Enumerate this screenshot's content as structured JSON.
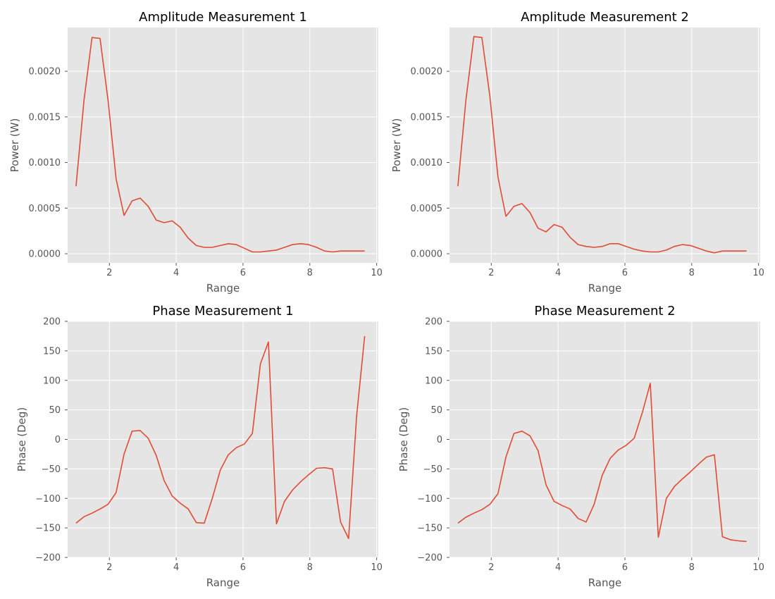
{
  "chart_data": [
    {
      "type": "line",
      "title": "Amplitude Measurement 1",
      "xlabel": "Range",
      "ylabel": "Power (W)",
      "xlim": [
        0.75,
        10.05
      ],
      "ylim": [
        -0.0001,
        0.00248
      ],
      "xticks": [
        2,
        4,
        6,
        8,
        10
      ],
      "yticks": [
        0.0,
        0.0005,
        0.001,
        0.0015,
        0.002
      ],
      "ytick_labels": [
        "0.0000",
        "0.0005",
        "0.0010",
        "0.0015",
        "0.0020"
      ],
      "grid": true,
      "color": "#e24a33",
      "x": [
        1.0,
        1.24,
        1.48,
        1.72,
        1.96,
        2.2,
        2.44,
        2.68,
        2.92,
        3.16,
        3.4,
        3.64,
        3.88,
        4.12,
        4.36,
        4.6,
        4.84,
        5.08,
        5.32,
        5.56,
        5.8,
        6.04,
        6.28,
        6.52,
        6.76,
        7.0,
        7.24,
        7.48,
        7.72,
        7.96,
        8.2,
        8.44,
        8.68,
        8.92,
        9.16,
        9.4,
        9.64
      ],
      "y": [
        0.00074,
        0.00168,
        0.00237,
        0.00236,
        0.00168,
        0.00082,
        0.00042,
        0.00058,
        0.00061,
        0.00052,
        0.00037,
        0.00034,
        0.00036,
        0.00029,
        0.00017,
        9e-05,
        7e-05,
        7e-05,
        9e-05,
        0.00011,
        0.0001,
        6e-05,
        2e-05,
        2e-05,
        3e-05,
        4e-05,
        7e-05,
        0.0001,
        0.00011,
        0.0001,
        7e-05,
        3e-05,
        2e-05,
        3e-05,
        3e-05,
        3e-05,
        3e-05
      ]
    },
    {
      "type": "line",
      "title": "Amplitude Measurement 2",
      "xlabel": "Range",
      "ylabel": "Power (W)",
      "xlim": [
        0.75,
        10.05
      ],
      "ylim": [
        -0.0001,
        0.00248
      ],
      "xticks": [
        2,
        4,
        6,
        8,
        10
      ],
      "yticks": [
        0.0,
        0.0005,
        0.001,
        0.0015,
        0.002
      ],
      "ytick_labels": [
        "0.0000",
        "0.0005",
        "0.0010",
        "0.0015",
        "0.0020"
      ],
      "grid": true,
      "color": "#e24a33",
      "x": [
        1.0,
        1.24,
        1.48,
        1.72,
        1.96,
        2.2,
        2.44,
        2.68,
        2.92,
        3.16,
        3.4,
        3.64,
        3.88,
        4.12,
        4.36,
        4.6,
        4.84,
        5.08,
        5.32,
        5.56,
        5.8,
        6.04,
        6.28,
        6.52,
        6.76,
        7.0,
        7.24,
        7.48,
        7.72,
        7.96,
        8.2,
        8.44,
        8.68,
        8.92,
        9.16,
        9.4,
        9.64
      ],
      "y": [
        0.00074,
        0.00168,
        0.00238,
        0.00237,
        0.00172,
        0.00084,
        0.00041,
        0.00052,
        0.00055,
        0.00045,
        0.00028,
        0.00024,
        0.00032,
        0.00029,
        0.00018,
        0.0001,
        8e-05,
        7e-05,
        8e-05,
        0.00011,
        0.00011,
        8e-05,
        5e-05,
        3e-05,
        2e-05,
        2e-05,
        4e-05,
        8e-05,
        0.0001,
        9e-05,
        6e-05,
        3e-05,
        1e-05,
        3e-05,
        3e-05,
        3e-05,
        3e-05
      ]
    },
    {
      "type": "line",
      "title": "Phase Measurement 1",
      "xlabel": "Range",
      "ylabel": "Phase (Deg)",
      "xlim": [
        0.75,
        10.05
      ],
      "ylim": [
        -200,
        200
      ],
      "xticks": [
        2,
        4,
        6,
        8,
        10
      ],
      "yticks": [
        -200,
        -150,
        -100,
        -50,
        0,
        50,
        100,
        150,
        200
      ],
      "ytick_labels": [
        "−200",
        "−150",
        "−100",
        "−50",
        "0",
        "50",
        "100",
        "150",
        "200"
      ],
      "grid": true,
      "color": "#e24a33",
      "x": [
        1.0,
        1.24,
        1.48,
        1.72,
        1.96,
        2.2,
        2.44,
        2.68,
        2.92,
        3.16,
        3.4,
        3.64,
        3.88,
        4.12,
        4.36,
        4.6,
        4.84,
        5.08,
        5.32,
        5.56,
        5.8,
        6.04,
        6.28,
        6.52,
        6.76,
        7.0,
        7.24,
        7.48,
        7.72,
        7.96,
        8.2,
        8.44,
        8.68,
        8.92,
        9.16,
        9.4,
        9.64
      ],
      "y": [
        -142,
        -131,
        -125,
        -118,
        -110,
        -90,
        -25,
        14,
        15,
        2,
        -27,
        -70,
        -96,
        -108,
        -118,
        -141,
        -142,
        -100,
        -52,
        -26,
        -14,
        -8,
        10,
        128,
        165,
        -143,
        -105,
        -86,
        -72,
        -60,
        -49,
        -48,
        -50,
        -140,
        -168,
        40,
        175
      ]
    },
    {
      "type": "line",
      "title": "Phase Measurement 2",
      "xlabel": "Range",
      "ylabel": "Phase (Deg)",
      "xlim": [
        0.75,
        10.05
      ],
      "ylim": [
        -200,
        200
      ],
      "xticks": [
        2,
        4,
        6,
        8,
        10
      ],
      "yticks": [
        -200,
        -150,
        -100,
        -50,
        0,
        50,
        100,
        150,
        200
      ],
      "ytick_labels": [
        "−200",
        "−150",
        "−100",
        "−50",
        "0",
        "50",
        "100",
        "150",
        "200"
      ],
      "grid": true,
      "color": "#e24a33",
      "x": [
        1.0,
        1.24,
        1.48,
        1.72,
        1.96,
        2.2,
        2.44,
        2.68,
        2.92,
        3.16,
        3.4,
        3.64,
        3.88,
        4.12,
        4.36,
        4.6,
        4.84,
        5.08,
        5.32,
        5.56,
        5.8,
        6.04,
        6.28,
        6.52,
        6.76,
        7.0,
        7.24,
        7.48,
        7.72,
        7.96,
        8.2,
        8.44,
        8.68,
        8.92,
        9.16,
        9.4,
        9.64
      ],
      "y": [
        -142,
        -132,
        -125,
        -119,
        -110,
        -92,
        -30,
        10,
        14,
        6,
        -19,
        -77,
        -105,
        -112,
        -118,
        -134,
        -140,
        -110,
        -61,
        -32,
        -18,
        -10,
        2,
        45,
        95,
        -166,
        -100,
        -80,
        -67,
        -55,
        -42,
        -30,
        -26,
        -165,
        -170,
        -172,
        -173
      ]
    }
  ]
}
